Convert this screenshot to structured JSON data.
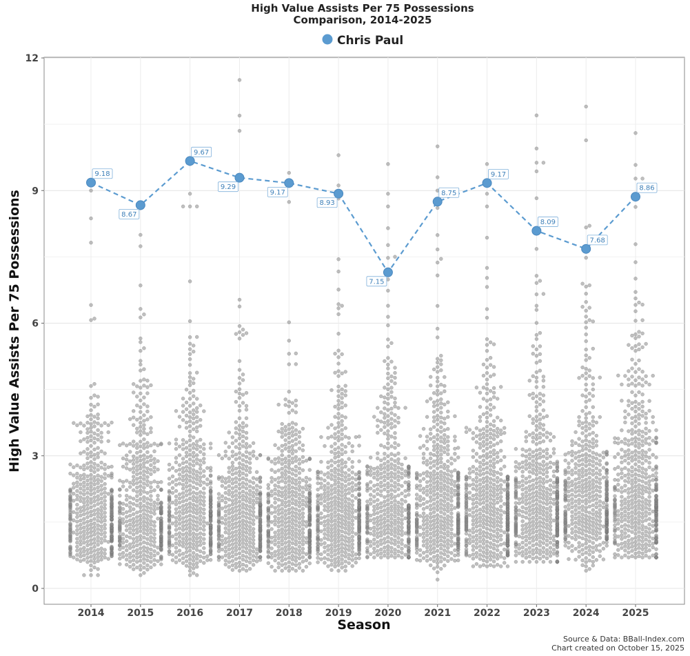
{
  "chart_data": {
    "type": "scatter",
    "title": "High Value Assists Per 75 Possessions",
    "subtitle": "Comparison, 2014-2025",
    "xlabel": "Season",
    "ylabel": "High Value Assists Per 75 Possessions",
    "categories": [
      "2014",
      "2015",
      "2016",
      "2017",
      "2018",
      "2019",
      "2020",
      "2021",
      "2022",
      "2023",
      "2024",
      "2025"
    ],
    "ylim": [
      0,
      12
    ],
    "yticks": [
      "0",
      "3",
      "6",
      "9",
      "12"
    ],
    "grid": true,
    "legend": "top-center",
    "series": [
      {
        "name": "Chris Paul",
        "color": "#5b9bd0",
        "values": [
          9.18,
          8.67,
          9.67,
          9.29,
          9.17,
          8.93,
          7.15,
          8.75,
          9.17,
          8.09,
          7.68,
          8.86
        ],
        "labels": [
          "9.18",
          "8.67",
          "9.67",
          "9.29",
          "9.17",
          "8.93",
          "7.15",
          "8.75",
          "9.17",
          "8.09",
          "7.68",
          "8.86"
        ]
      }
    ],
    "distribution": {
      "description": "League player distribution per season (beeswarm)",
      "color": "#8a8a8a",
      "seasons": [
        {
          "season": "2014",
          "n": 480,
          "median": 1.7,
          "max": 9.0,
          "min": 0.3
        },
        {
          "season": "2015",
          "n": 470,
          "median": 1.7,
          "max": 8.6,
          "min": 0.3
        },
        {
          "season": "2016",
          "n": 500,
          "median": 1.8,
          "max": 9.6,
          "min": 0.3
        },
        {
          "season": "2017",
          "n": 490,
          "median": 1.7,
          "max": 11.5,
          "min": 0.4
        },
        {
          "season": "2018",
          "n": 500,
          "median": 1.7,
          "max": 9.4,
          "min": 0.4
        },
        {
          "season": "2019",
          "n": 510,
          "median": 1.8,
          "max": 9.8,
          "min": 0.4
        },
        {
          "season": "2020",
          "n": 480,
          "median": 1.9,
          "max": 9.6,
          "min": 0.7
        },
        {
          "season": "2021",
          "n": 520,
          "median": 1.9,
          "max": 10.0,
          "min": 0.2
        },
        {
          "season": "2022",
          "n": 560,
          "median": 1.9,
          "max": 9.6,
          "min": 0.5
        },
        {
          "season": "2023",
          "n": 520,
          "median": 1.9,
          "max": 10.7,
          "min": 0.6
        },
        {
          "season": "2024",
          "n": 520,
          "median": 2.0,
          "max": 10.9,
          "min": 0.4
        },
        {
          "season": "2025",
          "n": 540,
          "median": 2.0,
          "max": 10.3,
          "min": 0.7
        }
      ]
    },
    "source_line1": "Source & Data: BBall-Index.com",
    "source_line2": "Chart created on October 15, 2025"
  }
}
